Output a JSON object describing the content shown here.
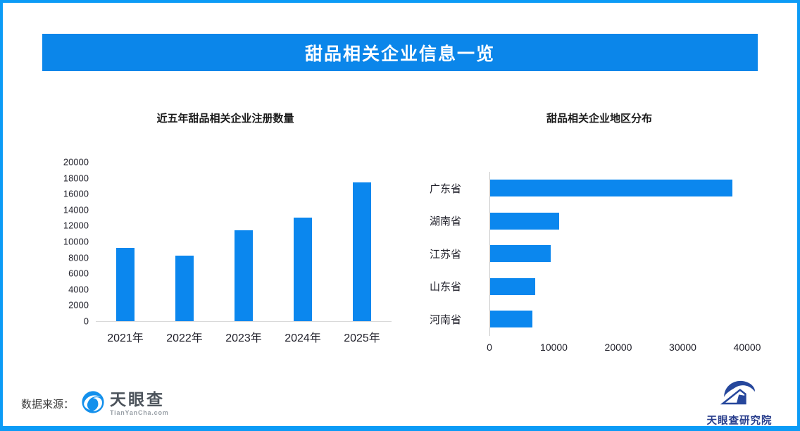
{
  "frame": {
    "border_color": "#0c9bf6"
  },
  "header": {
    "title": "甜品相关企业信息一览",
    "bg_color": "#0b86ea",
    "text_color": "#ffffff"
  },
  "chart_data": [
    {
      "type": "bar",
      "title": "近五年甜品相关企业注册数量",
      "categories": [
        "2021年",
        "2022年",
        "2023年",
        "2024年",
        "2025年"
      ],
      "values": [
        9200,
        8200,
        11400,
        13000,
        17400
      ],
      "xlabel": "",
      "ylabel": "",
      "ylim": [
        0,
        20000
      ],
      "y_ticks": [
        0,
        2000,
        4000,
        6000,
        8000,
        10000,
        12000,
        14000,
        16000,
        18000,
        20000
      ],
      "bar_color": "#0b87ee",
      "grid": false,
      "legend": "none"
    },
    {
      "type": "bar-horizontal",
      "title": "甜品相关企业地区分布",
      "categories": [
        "广东省",
        "湖南省",
        "江苏省",
        "山东省",
        "河南省"
      ],
      "values": [
        37600,
        10700,
        9400,
        7000,
        6600
      ],
      "xlabel": "",
      "ylabel": "",
      "xlim": [
        0,
        40000
      ],
      "x_ticks": [
        0,
        10000,
        20000,
        30000,
        40000
      ],
      "bar_color": "#0b87ee",
      "grid": false,
      "legend": "none"
    }
  ],
  "footer": {
    "source_label": "数据来源：",
    "tianyancha": {
      "name": "天眼查",
      "domain": "TianYanCha.com",
      "icon": "swirl-eye-logo",
      "icon_color": "#1390ec"
    },
    "institute": {
      "name": "天眼查研究院",
      "icon": "swirl-house-emblem",
      "icon_color": "#26479c"
    }
  }
}
